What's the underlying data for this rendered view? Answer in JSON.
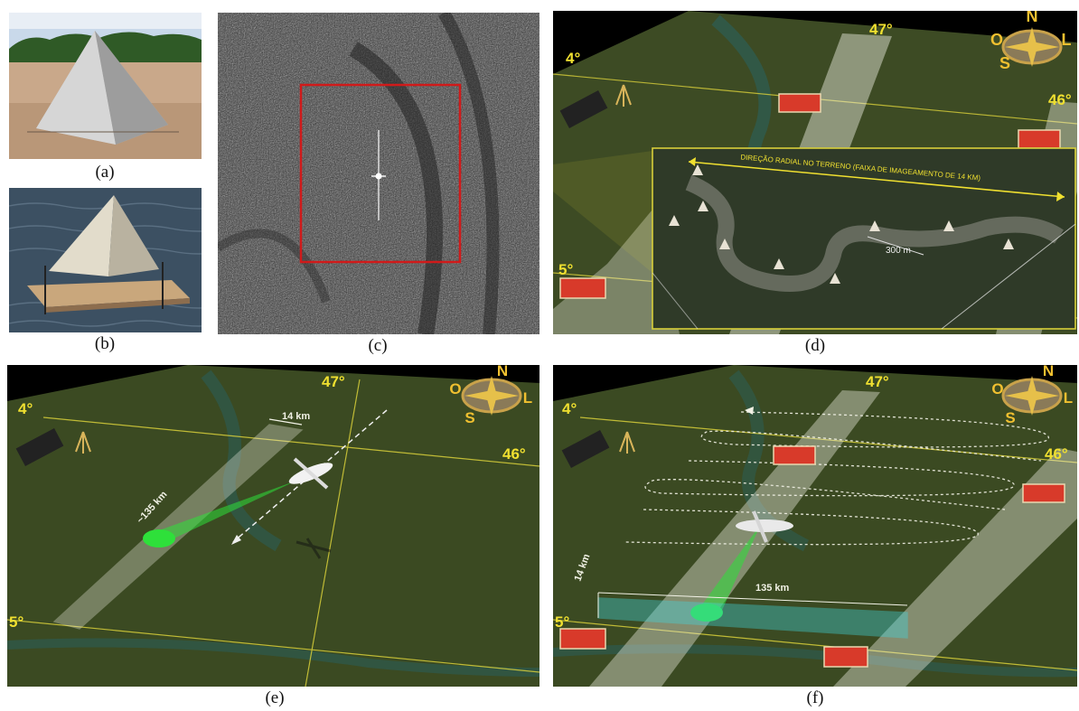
{
  "captions": {
    "a": "(a)",
    "b": "(b)",
    "c": "(c)",
    "d": "(d)",
    "e": "(e)",
    "f": "(f)"
  },
  "map_labels": {
    "lat_4": "4°",
    "lat_5": "5°",
    "lon_47": "47°",
    "lon_46": "46°",
    "compass": {
      "n": "N",
      "s": "S",
      "o": "O",
      "l": "L"
    }
  },
  "panel_d": {
    "radial_direction": "DIREÇÃO RADIAL NO TERRENO (FAIXA DE IMAGEAMENTO DE 14 KM)",
    "spacing": "300 m"
  },
  "panel_e": {
    "swath_width": "14 km",
    "swath_length": "~135 km"
  },
  "panel_f": {
    "swath_width": "14 km",
    "swath_length": "135 km"
  },
  "colors": {
    "terrain": "#3b4a22",
    "swath": "#f2f2e6",
    "target": "#d83a2a",
    "grid": "#d8cf3a",
    "beam": "#2ee03a",
    "sar_box": "#d01a1a"
  }
}
